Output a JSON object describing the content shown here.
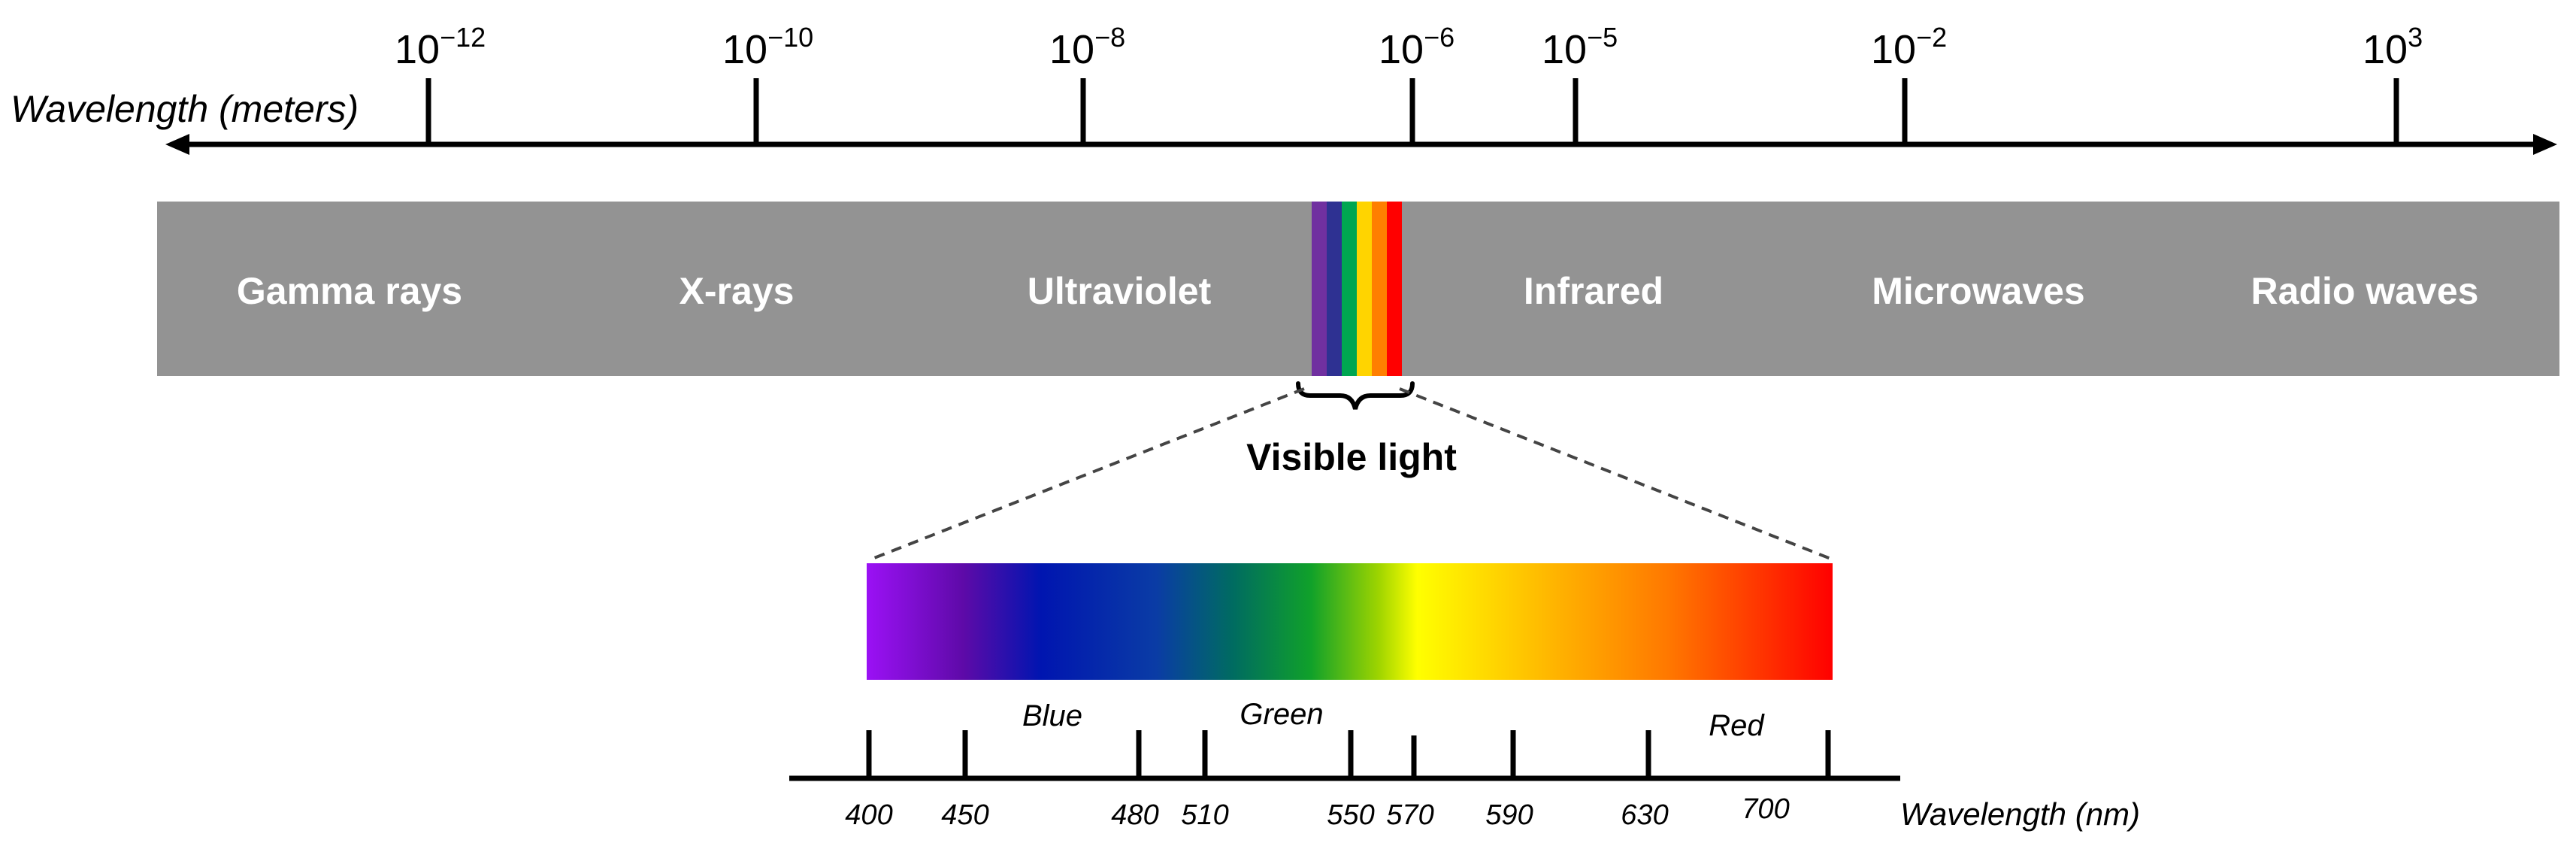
{
  "top_axis": {
    "title": "Wavelength (meters)",
    "ticks": [
      {
        "base": "10",
        "exp": "−12"
      },
      {
        "base": "10",
        "exp": "−10"
      },
      {
        "base": "10",
        "exp": "−8"
      },
      {
        "base": "10",
        "exp": "−6"
      },
      {
        "base": "10",
        "exp": "−5"
      },
      {
        "base": "10",
        "exp": "−2"
      },
      {
        "base": "10",
        "exp": "3"
      }
    ]
  },
  "spectrum_bands": [
    "Gamma rays",
    "X-rays",
    "Ultraviolet",
    "Infrared",
    "Microwaves",
    "Radio waves"
  ],
  "band_color": "#939393",
  "visible_stripe_colors": [
    "#7030a0",
    "#2e3192",
    "#00a651",
    "#ffd400",
    "#ff7f00",
    "#ff0000"
  ],
  "visible": {
    "title": "Visible light",
    "gradient_colors": [
      "#9b11f5",
      "#5e0aa8",
      "#0015b0",
      "#0a3ca5",
      "#006c60",
      "#10a12a",
      "#9ed400",
      "#ffff00",
      "#ffb000",
      "#ff7800",
      "#ff0000"
    ],
    "color_names": [
      "Blue",
      "Green",
      "Red"
    ],
    "nm_axis": {
      "title": "Wavelength (nm)",
      "tick_values": [
        "400",
        "450",
        "480",
        "510",
        "550",
        "570",
        "590",
        "630",
        "700"
      ]
    }
  }
}
